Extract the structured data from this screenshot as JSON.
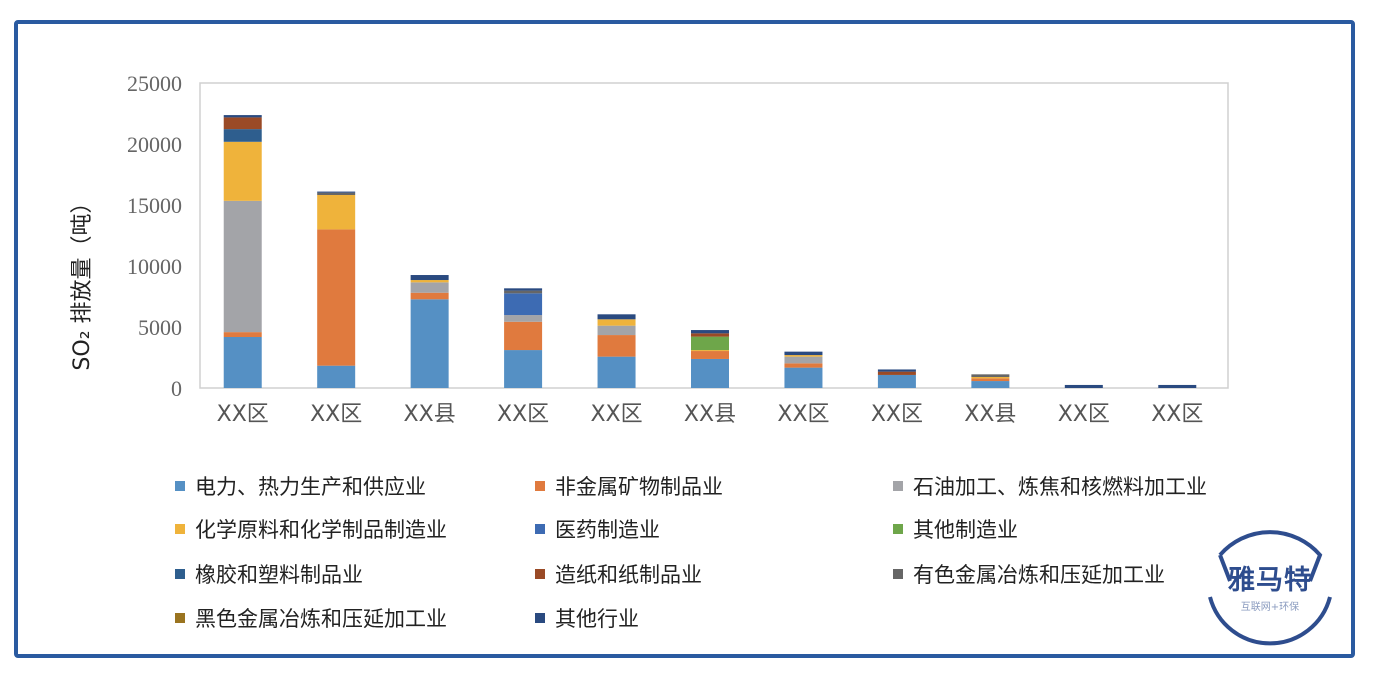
{
  "chart_data": {
    "type": "bar",
    "stacked": true,
    "ylabel": "SO₂ 排放量（吨）",
    "ylim": [
      0,
      25000
    ],
    "yticks": [
      "0",
      "5000",
      "10000",
      "15000",
      "20000",
      "25000"
    ],
    "grid": false,
    "legend_position": "bottom",
    "categories": [
      "XX区",
      "XX区",
      "XX县",
      "XX区",
      "XX区",
      "XX县",
      "XX区",
      "XX区",
      "XX县",
      "XX区",
      "XX区"
    ],
    "series": [
      {
        "name": "电力、热力生产和供应业",
        "color": "#5590c4",
        "values": [
          4180,
          1830,
          7270,
          3110,
          2570,
          2380,
          1670,
          1070,
          570,
          0,
          0
        ]
      },
      {
        "name": "非金属矿物制品业",
        "color": "#e07a3e",
        "values": [
          400,
          11170,
          540,
          2320,
          1770,
          650,
          350,
          0,
          220,
          0,
          0
        ]
      },
      {
        "name": "石油加工、炼焦和核燃料加工业",
        "color": "#a3a4a8",
        "values": [
          10760,
          0,
          850,
          550,
          770,
          0,
          550,
          0,
          0,
          0,
          0
        ]
      },
      {
        "name": "化学原料和化学制品制造业",
        "color": "#efb33b",
        "values": [
          4840,
          2820,
          190,
          0,
          520,
          80,
          130,
          0,
          110,
          0,
          0
        ]
      },
      {
        "name": "医药制造业",
        "color": "#3d6bb3",
        "values": [
          0,
          0,
          0,
          1780,
          0,
          0,
          0,
          0,
          0,
          0,
          0
        ]
      },
      {
        "name": "其他制造业",
        "color": "#6ea64a",
        "values": [
          0,
          0,
          0,
          0,
          0,
          1100,
          0,
          0,
          0,
          0,
          0
        ]
      },
      {
        "name": "橡胶和塑料制品业",
        "color": "#2e5e8e",
        "values": [
          1040,
          0,
          0,
          0,
          0,
          0,
          0,
          0,
          0,
          0,
          0
        ]
      },
      {
        "name": "造纸和纸制品业",
        "color": "#9a4a26",
        "values": [
          960,
          0,
          0,
          0,
          0,
          270,
          0,
          270,
          0,
          0,
          0
        ]
      },
      {
        "name": "有色金属冶炼和压延加工业",
        "color": "#666666",
        "values": [
          0,
          190,
          0,
          220,
          0,
          0,
          0,
          0,
          220,
          0,
          0
        ]
      },
      {
        "name": "黑色金属冶炼和压延加工业",
        "color": "#9a7420",
        "values": [
          0,
          0,
          0,
          0,
          0,
          0,
          0,
          0,
          0,
          0,
          0
        ]
      },
      {
        "name": "其他行业",
        "color": "#2a4a80",
        "values": [
          190,
          90,
          410,
          190,
          410,
          270,
          280,
          180,
          0,
          250,
          250
        ]
      }
    ]
  },
  "watermark": {
    "title": "雅马特",
    "subtitle": "互联网+环保",
    "color": "#2e4d8e"
  }
}
